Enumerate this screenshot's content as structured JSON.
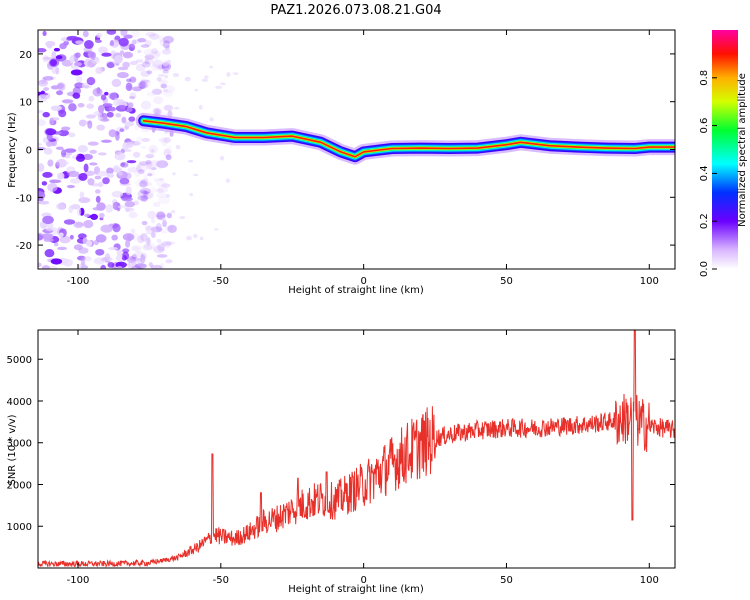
{
  "title": "PAZ1.2026.073.08.21.G04",
  "chart_data": [
    {
      "type": "heatmap",
      "xlabel": "Height of straight line (km)",
      "ylabel": "Frequency (Hz)",
      "xlim": [
        -114,
        109
      ],
      "ylim": [
        -25,
        25
      ],
      "xticks": [
        -100,
        -50,
        0,
        50,
        100
      ],
      "yticks": [
        -20,
        -10,
        0,
        10,
        20
      ],
      "ridge": {
        "x": [
          -77,
          -70,
          -62,
          -55,
          -45,
          -35,
          -25,
          -15,
          -8,
          -3,
          0,
          10,
          20,
          30,
          40,
          50,
          55,
          65,
          75,
          85,
          95,
          100,
          105,
          109
        ],
        "freq": [
          6,
          5.5,
          4.8,
          3.5,
          2.5,
          2.5,
          2.8,
          1.5,
          -0.5,
          -1.5,
          -0.5,
          0.2,
          0.3,
          0.2,
          0.3,
          1.0,
          1.5,
          0.8,
          0.5,
          0.3,
          0.2,
          0.5,
          0.5,
          0.5
        ]
      },
      "noise_region": [
        -114,
        -73
      ],
      "colorbar": {
        "label": "Normalized spectral amplitude",
        "ticks": [
          "0.0",
          "0.2",
          "0.4",
          "0.6",
          "0.8"
        ],
        "range": [
          0,
          1
        ]
      }
    },
    {
      "type": "line",
      "xlabel": "Height of straight line (km)",
      "ylabel": "SNR (10 * v/v)",
      "xlim": [
        -114,
        109
      ],
      "ylim": [
        0,
        5700
      ],
      "xticks": [
        -100,
        -50,
        0,
        50,
        100
      ],
      "yticks": [
        1000,
        2000,
        3000,
        4000,
        5000
      ],
      "color": "#e8302a",
      "series": [
        {
          "name": "SNR",
          "x": [
            -114,
            -90,
            -75,
            -65,
            -58,
            -55,
            -52,
            -50,
            -45,
            -40,
            -35,
            -30,
            -25,
            -20,
            -15,
            -10,
            -5,
            0,
            5,
            10,
            15,
            20,
            25,
            30,
            40,
            50,
            60,
            70,
            80,
            85,
            90,
            93,
            95,
            97,
            100,
            105,
            109
          ],
          "y": [
            100,
            100,
            120,
            250,
            500,
            650,
            800,
            750,
            700,
            850,
            1100,
            1200,
            1400,
            1550,
            1650,
            1600,
            1800,
            2000,
            2250,
            2500,
            2750,
            2950,
            3100,
            3200,
            3300,
            3350,
            3350,
            3400,
            3450,
            3500,
            3550,
            3600,
            3550,
            3450,
            3400,
            3350,
            3300
          ]
        }
      ],
      "spikes": [
        {
          "x": -53,
          "y": 2730
        },
        {
          "x": -36,
          "y": 1800
        },
        {
          "x": -23,
          "y": 2150
        },
        {
          "x": -13,
          "y": 2300
        },
        {
          "x": 95,
          "y": 5700
        },
        {
          "x": 94,
          "y": 1150
        }
      ]
    }
  ]
}
